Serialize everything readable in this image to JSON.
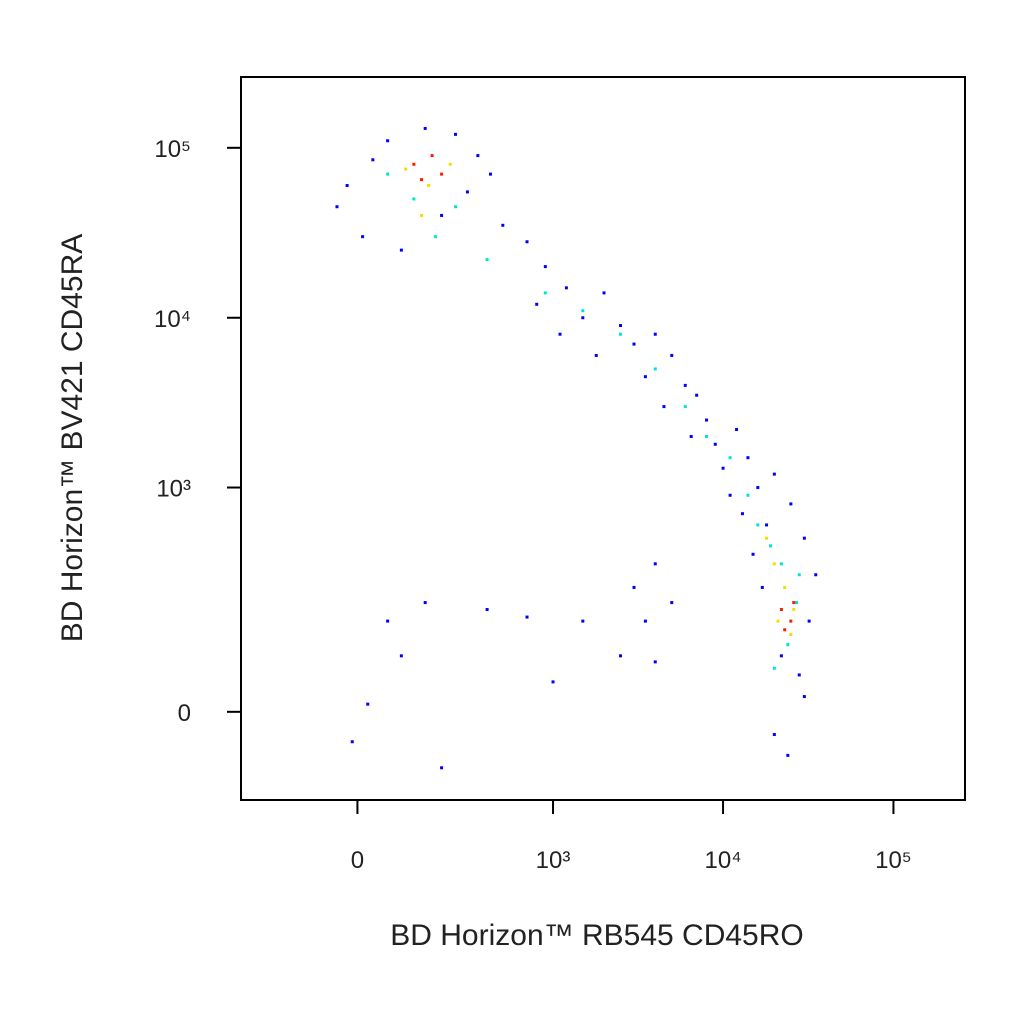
{
  "chart_data": {
    "type": "scatter",
    "x_label": "BD Horizon™ RB545 CD45RO",
    "y_label": "BD Horizon™ BV421 CD45RA",
    "xscale": "biexponential",
    "yscale": "biexponential",
    "xlim": [
      -330,
      263000
    ],
    "ylim": [
      -144,
      261000
    ],
    "xticks": [
      0,
      {
        "value": 1000,
        "label": "10³"
      },
      {
        "value": 10000,
        "label": "10⁴"
      },
      {
        "value": 100000,
        "label": "10⁵"
      }
    ],
    "yticks": [
      0,
      {
        "value": 1000,
        "label": "10³"
      },
      {
        "value": 10000,
        "label": "10⁴"
      },
      {
        "value": 100000,
        "label": "10⁵"
      }
    ],
    "series": [
      {
        "color": "#0000ff",
        "x": [
          -20,
          30,
          60,
          250,
          350,
          420,
          -40,
          10,
          90,
          200,
          300,
          150,
          500,
          700,
          900,
          1200,
          800,
          1500,
          2000,
          1100,
          2500,
          3000,
          1800,
          4000,
          3500,
          5000,
          6000,
          4500,
          7000,
          8000,
          6500,
          9000,
          12000,
          10000,
          14000,
          11000,
          16000,
          20000,
          13000,
          18000,
          25000,
          30000,
          15000,
          35000,
          32000,
          17000,
          22000,
          28000,
          20000,
          30000,
          24000,
          60,
          90,
          150,
          20,
          -10,
          400,
          700,
          1500,
          3000,
          4000,
          3500,
          5000,
          2500,
          200,
          4000,
          1000
        ],
        "y": [
          60000,
          85000,
          110000,
          120000,
          90000,
          70000,
          45000,
          30000,
          25000,
          40000,
          55000,
          130000,
          35000,
          28000,
          20000,
          15000,
          12000,
          10000,
          14000,
          8000,
          9000,
          7000,
          6000,
          8000,
          4500,
          6000,
          4000,
          3000,
          3500,
          2500,
          2000,
          1800,
          2200,
          1300,
          1500,
          900,
          1000,
          1200,
          700,
          600,
          800,
          500,
          400,
          300,
          150,
          250,
          80,
          50,
          -30,
          20,
          -60,
          150,
          80,
          200,
          10,
          -40,
          180,
          160,
          150,
          250,
          350,
          150,
          200,
          80,
          -80,
          70,
          40
        ]
      },
      {
        "color": "#00e5d0",
        "x": [
          60,
          120,
          250,
          180,
          400,
          900,
          1500,
          2500,
          4000,
          6000,
          8000,
          11000,
          14000,
          16000,
          19000,
          22000,
          27000,
          24000,
          20000,
          28000
        ],
        "y": [
          70000,
          50000,
          45000,
          30000,
          22000,
          14000,
          11000,
          8000,
          5000,
          3000,
          2000,
          1500,
          900,
          600,
          450,
          350,
          200,
          100,
          60,
          300
        ]
      },
      {
        "color": "#f0e000",
        "x": [
          100,
          160,
          230,
          140,
          18000,
          23000,
          26000,
          21000,
          25000,
          20000
        ],
        "y": [
          75000,
          60000,
          80000,
          40000,
          500,
          250,
          180,
          150,
          120,
          350
        ]
      },
      {
        "color": "#ff1a00",
        "x": [
          120,
          170,
          200,
          140,
          22000,
          25000,
          23000,
          26000
        ],
        "y": [
          80000,
          90000,
          70000,
          65000,
          180,
          150,
          130,
          200
        ]
      }
    ]
  }
}
